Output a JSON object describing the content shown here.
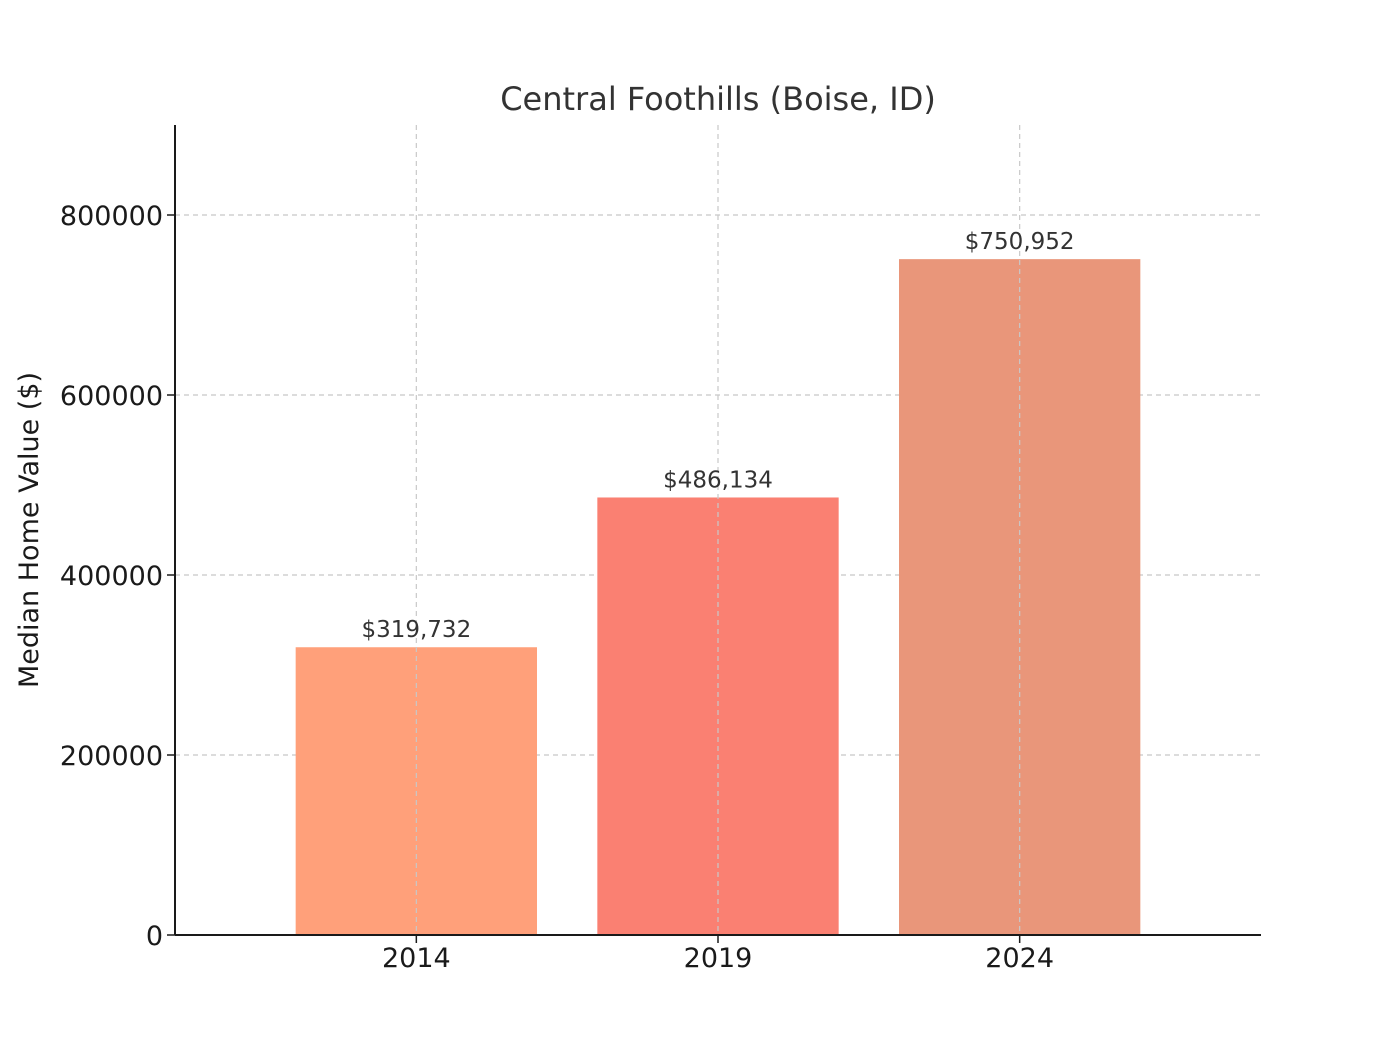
{
  "chart_data": {
    "type": "bar",
    "title": "Central Foothills (Boise, ID)",
    "xlabel": "",
    "ylabel": "Median Home Value ($)",
    "categories": [
      "2014",
      "2019",
      "2024"
    ],
    "values": [
      319732,
      486134,
      750952
    ],
    "value_labels": [
      "$319,732",
      "$486,134",
      "$750,952"
    ],
    "colors": [
      "#FFA07A",
      "#FA8072",
      "#E9967A"
    ],
    "ylim": [
      0,
      900000
    ],
    "yticks": [
      0,
      200000,
      400000,
      600000,
      800000
    ],
    "ytick_labels": [
      "0",
      "200000",
      "400000",
      "600000",
      "800000"
    ],
    "grid": true,
    "legend": "none"
  }
}
